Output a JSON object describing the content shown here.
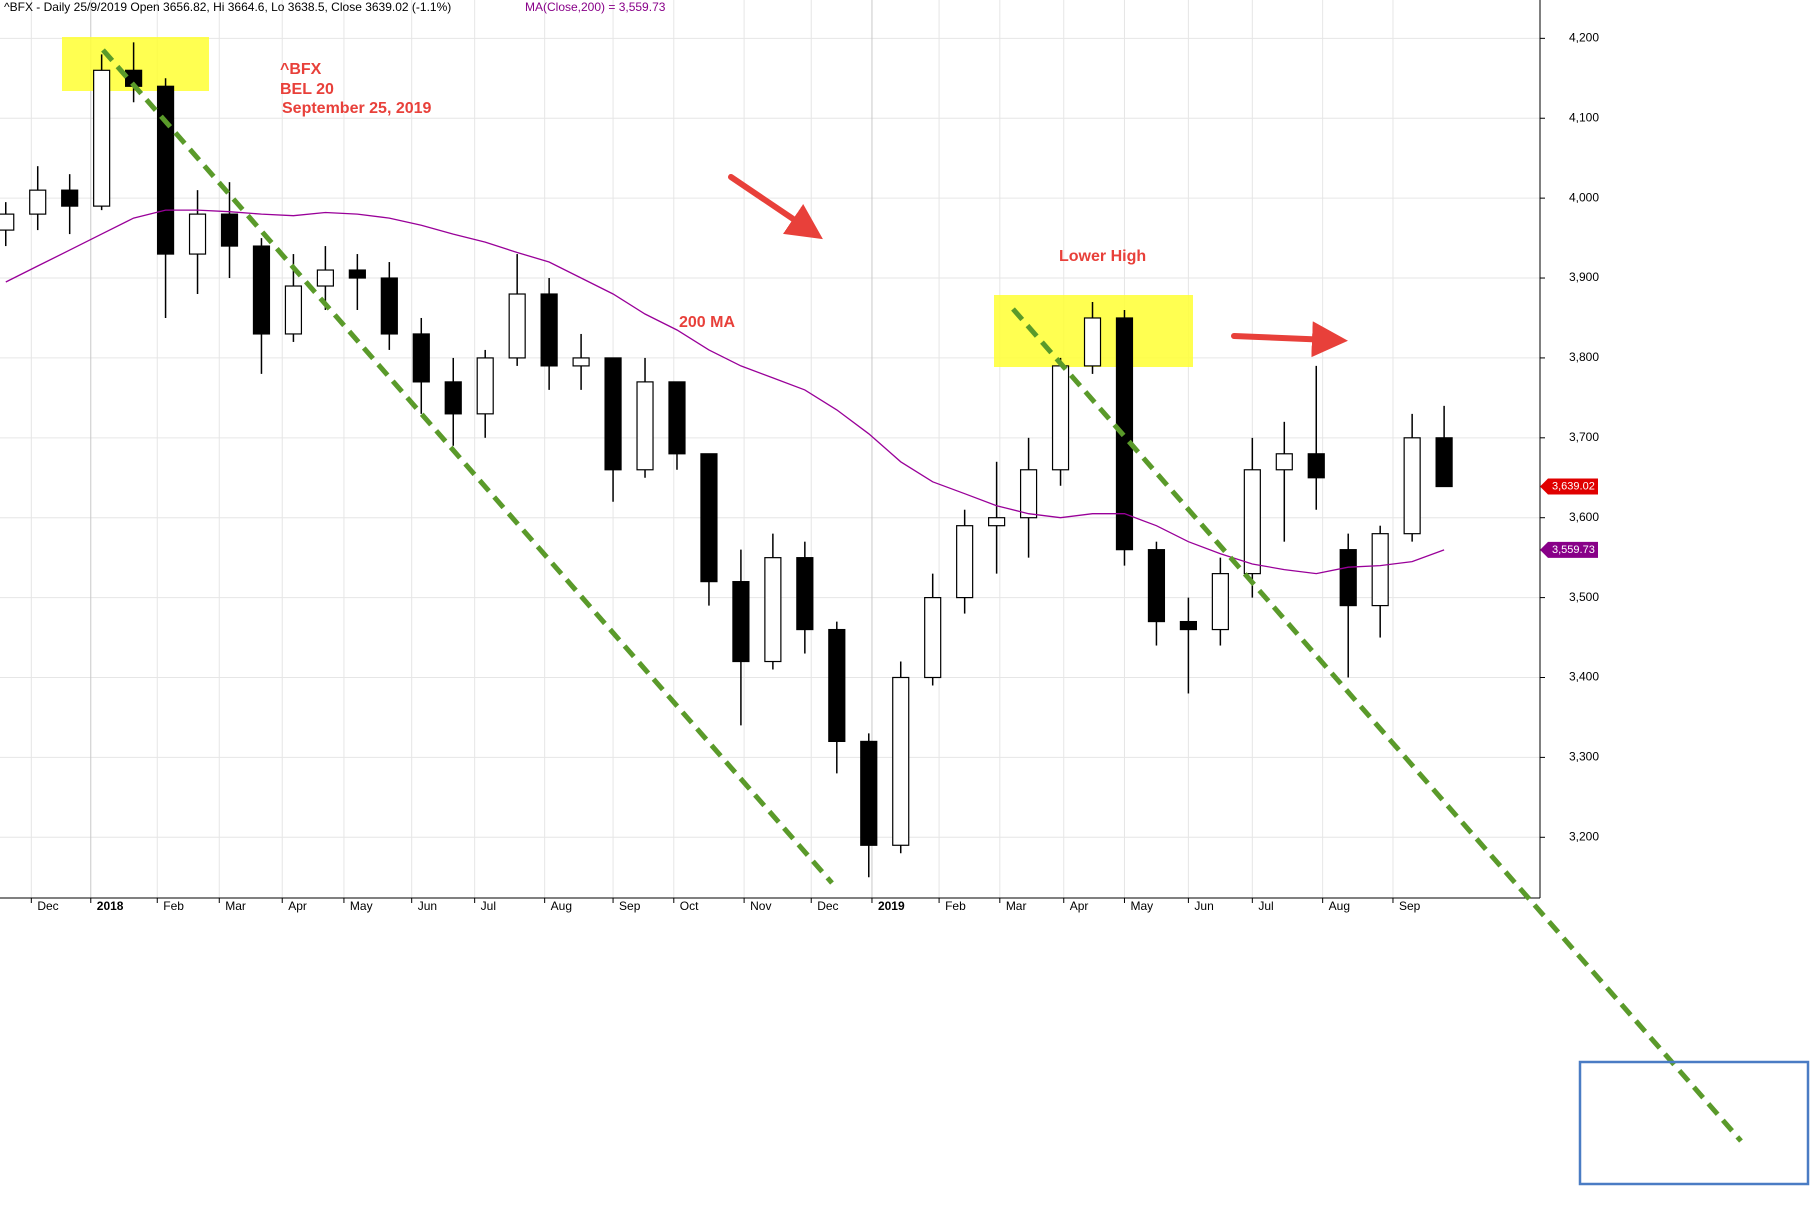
{
  "chart_data": {
    "type": "candlestick",
    "header": "^BFX - Daily 25/9/2019 Open 3656.82, Hi 3664.6, Lo 3638.5, Close 3639.02 (-1.1%)",
    "ma_header": "MA(Close,200) = 3,559.73",
    "annotations": [
      "^BFX",
      "BEL 20",
      "September 25, 2019",
      "Lower High",
      "200 MA"
    ],
    "x": [
      0,
      1,
      2,
      3,
      4,
      5,
      6,
      7,
      8,
      9,
      10,
      11,
      12,
      13,
      14,
      15,
      16,
      17,
      18,
      19,
      20,
      21,
      22,
      23,
      24,
      25,
      26,
      27,
      28,
      29,
      30,
      31,
      32,
      33,
      34,
      35,
      36,
      37,
      38,
      39,
      40,
      41,
      42,
      43,
      44,
      45
    ],
    "open": [
      3960,
      3980,
      4010,
      3990,
      4160,
      4140,
      3930,
      3980,
      3940,
      3830,
      3890,
      3910,
      3900,
      3830,
      3770,
      3730,
      3800,
      3880,
      3790,
      3800,
      3660,
      3770,
      3680,
      3520,
      3420,
      3550,
      3460,
      3320,
      3190,
      3400,
      3500,
      3590,
      3600,
      3660,
      3790,
      3850,
      3560,
      3470,
      3460,
      3530,
      3660,
      3680,
      3560,
      3490,
      3580,
      3700
    ],
    "high": [
      3995,
      4040,
      4030,
      4180,
      4195,
      4150,
      4010,
      4020,
      3950,
      3930,
      3940,
      3930,
      3920,
      3850,
      3800,
      3810,
      3930,
      3900,
      3830,
      3800,
      3800,
      3770,
      3680,
      3560,
      3580,
      3570,
      3470,
      3330,
      3420,
      3530,
      3610,
      3670,
      3700,
      3800,
      3870,
      3860,
      3570,
      3500,
      3550,
      3700,
      3720,
      3790,
      3580,
      3590,
      3730,
      3740
    ],
    "low": [
      3940,
      3960,
      3955,
      3985,
      4120,
      3850,
      3880,
      3900,
      3780,
      3820,
      3860,
      3860,
      3810,
      3730,
      3690,
      3700,
      3790,
      3760,
      3760,
      3620,
      3650,
      3660,
      3490,
      3340,
      3410,
      3430,
      3280,
      3150,
      3180,
      3390,
      3480,
      3530,
      3550,
      3640,
      3780,
      3540,
      3440,
      3380,
      3440,
      3500,
      3570,
      3610,
      3400,
      3450,
      3570,
      3638.5
    ],
    "close": [
      3980,
      4010,
      3990,
      4160,
      4140,
      3930,
      3980,
      3940,
      3830,
      3890,
      3910,
      3900,
      3830,
      3770,
      3730,
      3800,
      3880,
      3790,
      3800,
      3660,
      3770,
      3680,
      3520,
      3420,
      3550,
      3460,
      3320,
      3190,
      3400,
      3500,
      3590,
      3600,
      3660,
      3790,
      3850,
      3560,
      3470,
      3460,
      3530,
      3660,
      3680,
      3650,
      3490,
      3580,
      3700,
      3639.02
    ],
    "ma": {
      "name": "MA(Close,200)",
      "color": "#990099",
      "values": [
        3895,
        3915,
        3935,
        3955,
        3975,
        3985,
        3985,
        3983,
        3980,
        3978,
        3982,
        3980,
        3975,
        3966,
        3955,
        3945,
        3932,
        3920,
        3900,
        3880,
        3855,
        3835,
        3810,
        3790,
        3775,
        3760,
        3735,
        3705,
        3670,
        3645,
        3630,
        3615,
        3605,
        3600,
        3605,
        3605,
        3590,
        3570,
        3555,
        3542,
        3535,
        3530,
        3538,
        3540,
        3545,
        3559.73
      ]
    },
    "last_tag": {
      "value": 3639.02,
      "label": "3,639.02",
      "color": "#e00000"
    },
    "ma_tag": {
      "value": 3559.73,
      "label": "3,559.73",
      "color": "#880088"
    },
    "xlim": [
      -0.18,
      48
    ],
    "xticks": [
      {
        "value": 0.8,
        "label": "Dec"
      },
      {
        "value": 2.66,
        "label": "2018"
      },
      {
        "value": 4.74,
        "label": "Feb"
      },
      {
        "value": 6.68,
        "label": "Mar"
      },
      {
        "value": 8.65,
        "label": "Apr"
      },
      {
        "value": 10.58,
        "label": "May"
      },
      {
        "value": 12.7,
        "label": "Jun"
      },
      {
        "value": 14.67,
        "label": "Jul"
      },
      {
        "value": 16.86,
        "label": "Aug"
      },
      {
        "value": 19.0,
        "label": "Sep"
      },
      {
        "value": 20.9,
        "label": "Oct"
      },
      {
        "value": 23.1,
        "label": "Nov"
      },
      {
        "value": 25.2,
        "label": "Dec"
      },
      {
        "value": 27.1,
        "label": "2019"
      },
      {
        "value": 29.2,
        "label": "Feb"
      },
      {
        "value": 31.1,
        "label": "Mar"
      },
      {
        "value": 33.1,
        "label": "Apr"
      },
      {
        "value": 35.0,
        "label": "May"
      },
      {
        "value": 37.0,
        "label": "Jun"
      },
      {
        "value": 39.0,
        "label": "Jul"
      },
      {
        "value": 41.2,
        "label": "Aug"
      },
      {
        "value": 43.4,
        "label": "Sep"
      }
    ],
    "ylim": [
      3124,
      4248
    ],
    "yticks": [
      {
        "value": 3200,
        "label": "3,200"
      },
      {
        "value": 3300,
        "label": "3,300"
      },
      {
        "value": 3400,
        "label": "3,400"
      },
      {
        "value": 3500,
        "label": "3,500"
      },
      {
        "value": 3600,
        "label": "3,600"
      },
      {
        "value": 3700,
        "label": "3,700"
      },
      {
        "value": 3800,
        "label": "3,800"
      },
      {
        "value": 3900,
        "label": "3,900"
      },
      {
        "value": 4000,
        "label": "4,000"
      },
      {
        "value": 4100,
        "label": "4,100"
      },
      {
        "value": 4200,
        "label": "4,200"
      }
    ],
    "grid": true
  }
}
